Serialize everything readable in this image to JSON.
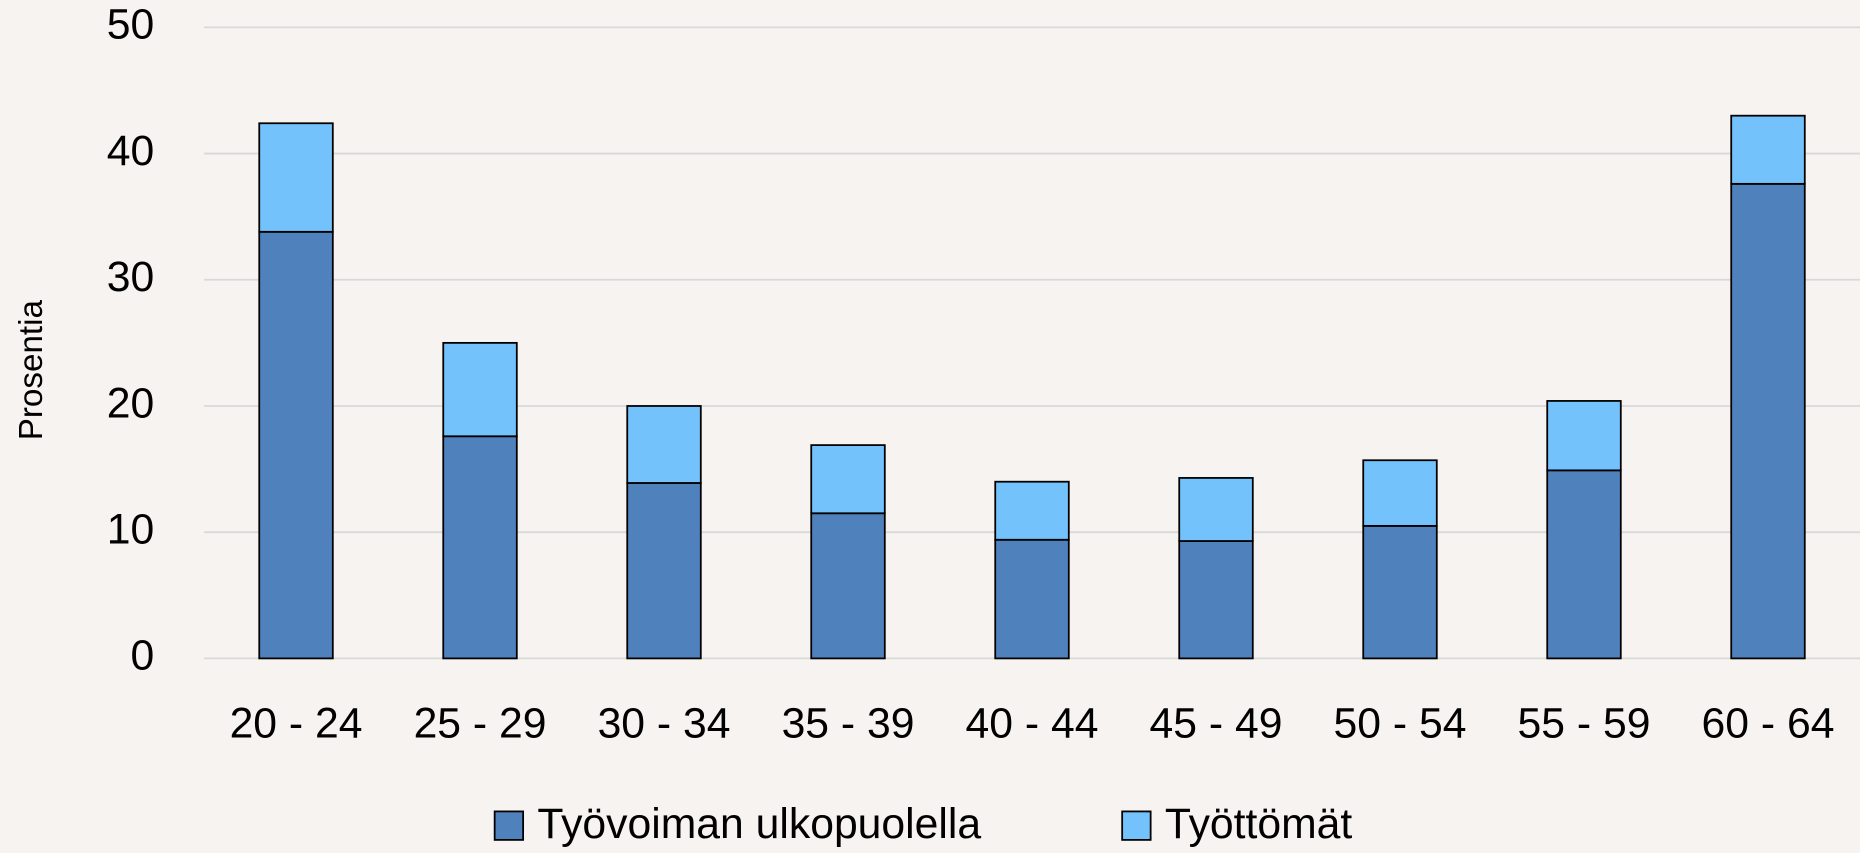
{
  "chart_data": {
    "type": "stacked_bar",
    "y_label": "Prosentia",
    "categories": [
      "20 - 24",
      "25 - 29",
      "30 - 34",
      "35 - 39",
      "40 - 44",
      "45 - 49",
      "50 - 54",
      "55 - 59",
      "60 - 64"
    ],
    "series": [
      {
        "name": "Työvoiman ulkopuolella",
        "color": "#4f81bd",
        "values": [
          33.8,
          17.6,
          13.9,
          11.5,
          9.4,
          9.3,
          10.5,
          14.9,
          37.6
        ]
      },
      {
        "name": "Työttömät",
        "color": "#73c2fb",
        "values": [
          8.6,
          7.4,
          6.1,
          5.4,
          4.6,
          5.0,
          5.2,
          5.5,
          5.4
        ]
      }
    ],
    "ylim": [
      0,
      50
    ],
    "yticks": [
      0,
      10,
      20,
      30,
      40,
      50
    ],
    "grid": true,
    "legend": "bottom"
  }
}
